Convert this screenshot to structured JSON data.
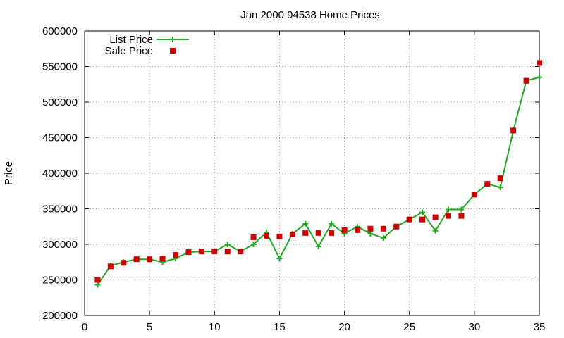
{
  "chart_data": {
    "type": "line",
    "title": "Jan 2000 94538 Home Prices",
    "xlabel": "",
    "ylabel": "Price",
    "xlim": [
      0,
      35
    ],
    "ylim": [
      200000,
      600000
    ],
    "x_ticks": [
      0,
      5,
      10,
      15,
      20,
      25,
      30,
      35
    ],
    "y_ticks": [
      200000,
      250000,
      300000,
      350000,
      400000,
      450000,
      500000,
      550000,
      600000
    ],
    "grid": true,
    "legend_position": "top-left",
    "series": [
      {
        "name": "List Price",
        "style": "line-with-plus-markers",
        "color": "#22aa22",
        "x": [
          1,
          2,
          3,
          4,
          5,
          6,
          7,
          8,
          9,
          10,
          11,
          12,
          13,
          14,
          15,
          16,
          17,
          18,
          19,
          20,
          21,
          22,
          23,
          24,
          25,
          26,
          27,
          28,
          29,
          30,
          31,
          32,
          33,
          34,
          35
        ],
        "y": [
          243000,
          270000,
          275000,
          279000,
          279000,
          275000,
          280000,
          289000,
          290000,
          290000,
          300000,
          290000,
          300000,
          317000,
          280000,
          315000,
          329000,
          297000,
          329000,
          315000,
          325000,
          315000,
          309000,
          325000,
          335000,
          345000,
          319000,
          349000,
          349000,
          370000,
          385000,
          380000,
          460000,
          530000,
          535000
        ]
      },
      {
        "name": "Sale Price",
        "style": "square-markers",
        "color": "#cc0000",
        "x": [
          1,
          2,
          3,
          4,
          5,
          6,
          7,
          8,
          9,
          10,
          11,
          12,
          13,
          14,
          15,
          16,
          17,
          18,
          19,
          20,
          21,
          22,
          23,
          24,
          25,
          26,
          27,
          28,
          29,
          30,
          31,
          32,
          33,
          34,
          35
        ],
        "y": [
          250000,
          269000,
          274000,
          279000,
          279000,
          280000,
          285000,
          289000,
          290000,
          290000,
          290000,
          290000,
          310000,
          312000,
          311000,
          314000,
          316000,
          316000,
          316000,
          320000,
          320000,
          322000,
          322000,
          325000,
          335000,
          335000,
          338000,
          340000,
          340000,
          370000,
          385000,
          393000,
          460000,
          530000,
          555000
        ]
      }
    ]
  }
}
